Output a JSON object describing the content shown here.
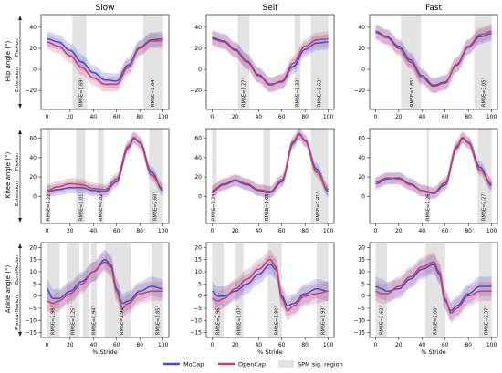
{
  "figure": {
    "col_titles": [
      "Slow",
      "Self",
      "Fast"
    ],
    "row_labels": [
      "Hip angle (°)",
      "Knee angle (°)",
      "Ankle angle (°)"
    ],
    "row_sublabels": [
      {
        "top": "Flexion",
        "bottom": "Extension"
      },
      {
        "top": "Flexion",
        "bottom": "Extension"
      },
      {
        "top": "Dorsiflexion",
        "bottom": "Plantarflexion"
      }
    ],
    "xlabel": "% Stride",
    "legend": [
      {
        "label": "MoCap",
        "color": "#3a4fd6",
        "kind": "line"
      },
      {
        "label": "OpenCap",
        "color": "#d23a63",
        "kind": "line"
      },
      {
        "label": "SPM sig. region",
        "color": "#e3e3e3",
        "kind": "patch"
      }
    ]
  },
  "chart_data": [
    {
      "type": "line",
      "row": "Hip",
      "speed": "Slow",
      "xlim": [
        -5,
        105
      ],
      "ylim": [
        -38,
        52
      ],
      "yticks": [
        -20,
        0,
        20,
        40
      ],
      "xticks": [
        0,
        20,
        40,
        60,
        80,
        100
      ],
      "x": [
        0,
        10,
        20,
        30,
        40,
        50,
        60,
        70,
        80,
        90,
        100
      ],
      "series": [
        {
          "name": "MoCap",
          "values": [
            29,
            26,
            18,
            7,
            -3,
            -10,
            -11,
            4,
            21,
            28,
            29
          ]
        },
        {
          "name": "OpenCap",
          "values": [
            26,
            22,
            13,
            2,
            -8,
            -14,
            -14,
            2,
            20,
            27,
            27
          ]
        }
      ],
      "spm_regions": [
        [
          22,
          34
        ],
        [
          83,
          100
        ]
      ],
      "rmse_labels": [
        {
          "text": "RMSE=1.69°",
          "x": 29
        },
        {
          "text": "RMSE=2.64°",
          "x": 91
        }
      ]
    },
    {
      "type": "line",
      "row": "Hip",
      "speed": "Self",
      "xlim": [
        -5,
        105
      ],
      "ylim": [
        -38,
        52
      ],
      "yticks": [
        -20,
        0,
        20,
        40
      ],
      "xticks": [
        0,
        20,
        40,
        60,
        80,
        100
      ],
      "x": [
        0,
        10,
        20,
        30,
        40,
        50,
        60,
        70,
        80,
        90,
        100
      ],
      "series": [
        {
          "name": "MoCap",
          "values": [
            30,
            27,
            19,
            8,
            -5,
            -14,
            -12,
            3,
            19,
            25,
            26
          ]
        },
        {
          "name": "OpenCap",
          "values": [
            29,
            26,
            18,
            7,
            -6,
            -15,
            -11,
            6,
            22,
            28,
            29
          ]
        }
      ],
      "spm_regions": [
        [
          22,
          32
        ],
        [
          71,
          76
        ],
        [
          85,
          100
        ]
      ],
      "rmse_labels": [
        {
          "text": "RMSE=1.27°",
          "x": 27
        },
        {
          "text": "RMSE=1.33°",
          "x": 73
        },
        {
          "text": "RMSE=2.63°",
          "x": 92
        }
      ]
    },
    {
      "type": "line",
      "row": "Hip",
      "speed": "Fast",
      "xlim": [
        -5,
        105
      ],
      "ylim": [
        -38,
        52
      ],
      "yticks": [
        -20,
        0,
        20,
        40
      ],
      "xticks": [
        0,
        20,
        40,
        60,
        80,
        100
      ],
      "x": [
        0,
        10,
        20,
        30,
        40,
        50,
        60,
        70,
        80,
        90,
        100
      ],
      "series": [
        {
          "name": "MoCap",
          "values": [
            36,
            31,
            22,
            9,
            -6,
            -15,
            -12,
            4,
            21,
            31,
            34
          ]
        },
        {
          "name": "OpenCap",
          "values": [
            35,
            30,
            20,
            7,
            -8,
            -16,
            -13,
            5,
            22,
            33,
            36
          ]
        }
      ],
      "spm_regions": [
        [
          22,
          39
        ],
        [
          85,
          100
        ]
      ],
      "rmse_labels": [
        {
          "text": "RMSE=1.85°",
          "x": 31
        },
        {
          "text": "RMSE=3.05°",
          "x": 93
        }
      ]
    },
    {
      "type": "line",
      "row": "Knee",
      "speed": "Slow",
      "xlim": [
        -5,
        105
      ],
      "ylim": [
        -28,
        70
      ],
      "yticks": [
        0,
        20,
        40,
        60
      ],
      "xticks": [
        0,
        20,
        40,
        60,
        80,
        100
      ],
      "x": [
        0,
        10,
        20,
        30,
        40,
        50,
        60,
        70,
        75,
        80,
        90,
        100
      ],
      "series": [
        {
          "name": "MoCap",
          "values": [
            5,
            7,
            9,
            9,
            6,
            5,
            15,
            50,
            60,
            56,
            25,
            6
          ]
        },
        {
          "name": "OpenCap",
          "values": [
            6,
            10,
            13,
            12,
            8,
            7,
            18,
            52,
            61,
            55,
            22,
            8
          ]
        }
      ],
      "spm_regions": [
        [
          0,
          3
        ],
        [
          25,
          33
        ],
        [
          44,
          49
        ],
        [
          88,
          100
        ]
      ],
      "rmse_labels": [
        {
          "text": "RMSE=1.22°",
          "x": 1
        },
        {
          "text": "RMSE=1.01°",
          "x": 29
        },
        {
          "text": "RMSE=0.82°",
          "x": 46
        },
        {
          "text": "RMSE=2.60°",
          "x": 93
        }
      ]
    },
    {
      "type": "line",
      "row": "Knee",
      "speed": "Self",
      "xlim": [
        -5,
        105
      ],
      "ylim": [
        -28,
        70
      ],
      "yticks": [
        0,
        20,
        40,
        60
      ],
      "xticks": [
        0,
        20,
        40,
        60,
        80,
        100
      ],
      "x": [
        0,
        10,
        20,
        30,
        40,
        50,
        60,
        70,
        75,
        80,
        90,
        100
      ],
      "series": [
        {
          "name": "MoCap",
          "values": [
            5,
            12,
            16,
            12,
            6,
            4,
            15,
            55,
            64,
            58,
            28,
            5
          ]
        },
        {
          "name": "OpenCap",
          "values": [
            6,
            13,
            17,
            13,
            7,
            5,
            17,
            57,
            65,
            57,
            25,
            7
          ]
        }
      ],
      "spm_regions": [
        [
          0,
          4
        ],
        [
          44,
          50
        ],
        [
          85,
          100
        ]
      ],
      "rmse_labels": [
        {
          "text": "RMSE=1.24°",
          "x": 1
        },
        {
          "text": "RMSE=1.05°",
          "x": 47
        },
        {
          "text": "RMSE=2.41°",
          "x": 91
        }
      ]
    },
    {
      "type": "line",
      "row": "Knee",
      "speed": "Fast",
      "xlim": [
        -5,
        105
      ],
      "ylim": [
        -28,
        70
      ],
      "yticks": [
        0,
        20,
        40,
        60
      ],
      "xticks": [
        0,
        20,
        40,
        60,
        80,
        100
      ],
      "x": [
        0,
        10,
        20,
        30,
        40,
        50,
        60,
        70,
        75,
        80,
        90,
        100
      ],
      "series": [
        {
          "name": "MoCap",
          "values": [
            13,
            18,
            19,
            13,
            6,
            3,
            12,
            50,
            60,
            56,
            30,
            11
          ]
        },
        {
          "name": "OpenCap",
          "values": [
            15,
            19,
            18,
            12,
            6,
            4,
            14,
            52,
            61,
            55,
            27,
            13
          ]
        }
      ],
      "spm_regions": [
        [
          44,
          46
        ],
        [
          88,
          100
        ]
      ],
      "rmse_labels": [
        {
          "text": "RMSE=1.26°",
          "x": 45
        },
        {
          "text": "RMSE=2.27°",
          "x": 93
        }
      ]
    },
    {
      "type": "line",
      "row": "Ankle",
      "speed": "Slow",
      "xlim": [
        -5,
        105
      ],
      "ylim": [
        -17,
        22
      ],
      "yticks": [
        -15,
        -10,
        -5,
        0,
        5,
        10,
        15,
        20
      ],
      "xticks": [
        0,
        20,
        40,
        60,
        80,
        100
      ],
      "x": [
        0,
        5,
        10,
        20,
        30,
        40,
        50,
        55,
        60,
        65,
        70,
        80,
        90,
        100
      ],
      "series": [
        {
          "name": "MoCap",
          "values": [
            3,
            -1,
            -1,
            2,
            6,
            10,
            15,
            13,
            3,
            -3,
            -2,
            2,
            4,
            3
          ]
        },
        {
          "name": "OpenCap",
          "values": [
            -2,
            -3,
            -2,
            1,
            5,
            10,
            14,
            12,
            2,
            -5,
            -3,
            1,
            2,
            2
          ]
        }
      ],
      "spm_regions": [
        [
          0,
          11
        ],
        [
          17,
          28
        ],
        [
          31,
          36
        ],
        [
          38,
          43
        ],
        [
          50,
          72
        ],
        [
          90,
          100
        ]
      ],
      "rmse_labels": [
        {
          "text": "RMSE=2.98°",
          "x": 5
        },
        {
          "text": "RMSE=1.25°",
          "x": 22
        },
        {
          "text": "RMSE=0.94°",
          "x": 40
        },
        {
          "text": "RMSE=1.91°",
          "x": 64
        },
        {
          "text": "RMSE=1.85°",
          "x": 95
        }
      ]
    },
    {
      "type": "line",
      "row": "Ankle",
      "speed": "Self",
      "xlim": [
        -5,
        105
      ],
      "ylim": [
        -17,
        22
      ],
      "yticks": [
        -15,
        -10,
        -5,
        0,
        5,
        10,
        15,
        20
      ],
      "xticks": [
        0,
        20,
        40,
        60,
        80,
        100
      ],
      "x": [
        0,
        5,
        10,
        20,
        30,
        40,
        50,
        55,
        60,
        65,
        70,
        80,
        90,
        100
      ],
      "series": [
        {
          "name": "MoCap",
          "values": [
            2,
            0,
            0,
            2,
            5,
            9,
            13,
            11,
            0,
            -4,
            -3,
            1,
            3,
            2
          ]
        },
        {
          "name": "OpenCap",
          "values": [
            -1,
            -2,
            -1,
            3,
            7,
            11,
            15,
            12,
            -1,
            -6,
            -4,
            0,
            1,
            2
          ]
        }
      ],
      "spm_regions": [
        [
          0,
          10
        ],
        [
          20,
          27
        ],
        [
          48,
          60
        ],
        [
          90,
          100
        ]
      ],
      "rmse_labels": [
        {
          "text": "RMSE=2.96°",
          "x": 5
        },
        {
          "text": "RMSE=1.07°",
          "x": 23
        },
        {
          "text": "RMSE=1.80°",
          "x": 55
        },
        {
          "text": "RMSE=1.93°",
          "x": 95
        }
      ]
    },
    {
      "type": "line",
      "row": "Ankle",
      "speed": "Fast",
      "xlim": [
        -5,
        105
      ],
      "ylim": [
        -17,
        22
      ],
      "yticks": [
        -15,
        -10,
        -5,
        0,
        5,
        10,
        15,
        20
      ],
      "xticks": [
        0,
        20,
        40,
        60,
        80,
        100
      ],
      "x": [
        0,
        5,
        10,
        20,
        30,
        40,
        50,
        55,
        60,
        65,
        70,
        80,
        90,
        100
      ],
      "series": [
        {
          "name": "MoCap",
          "values": [
            4,
            3,
            2,
            3,
            7,
            11,
            13,
            9,
            -2,
            -6,
            -4,
            1,
            4,
            4
          ]
        },
        {
          "name": "OpenCap",
          "values": [
            2,
            1,
            1,
            4,
            8,
            12,
            14,
            10,
            -1,
            -7,
            -5,
            0,
            2,
            2
          ]
        }
      ],
      "spm_regions": [
        [
          0,
          10
        ],
        [
          43,
          60
        ],
        [
          89,
          100
        ]
      ],
      "rmse_labels": [
        {
          "text": "RMSE=3.62°",
          "x": 5
        },
        {
          "text": "RMSE=2.00°",
          "x": 51
        },
        {
          "text": "RMSE=2.37°",
          "x": 95
        }
      ]
    }
  ]
}
